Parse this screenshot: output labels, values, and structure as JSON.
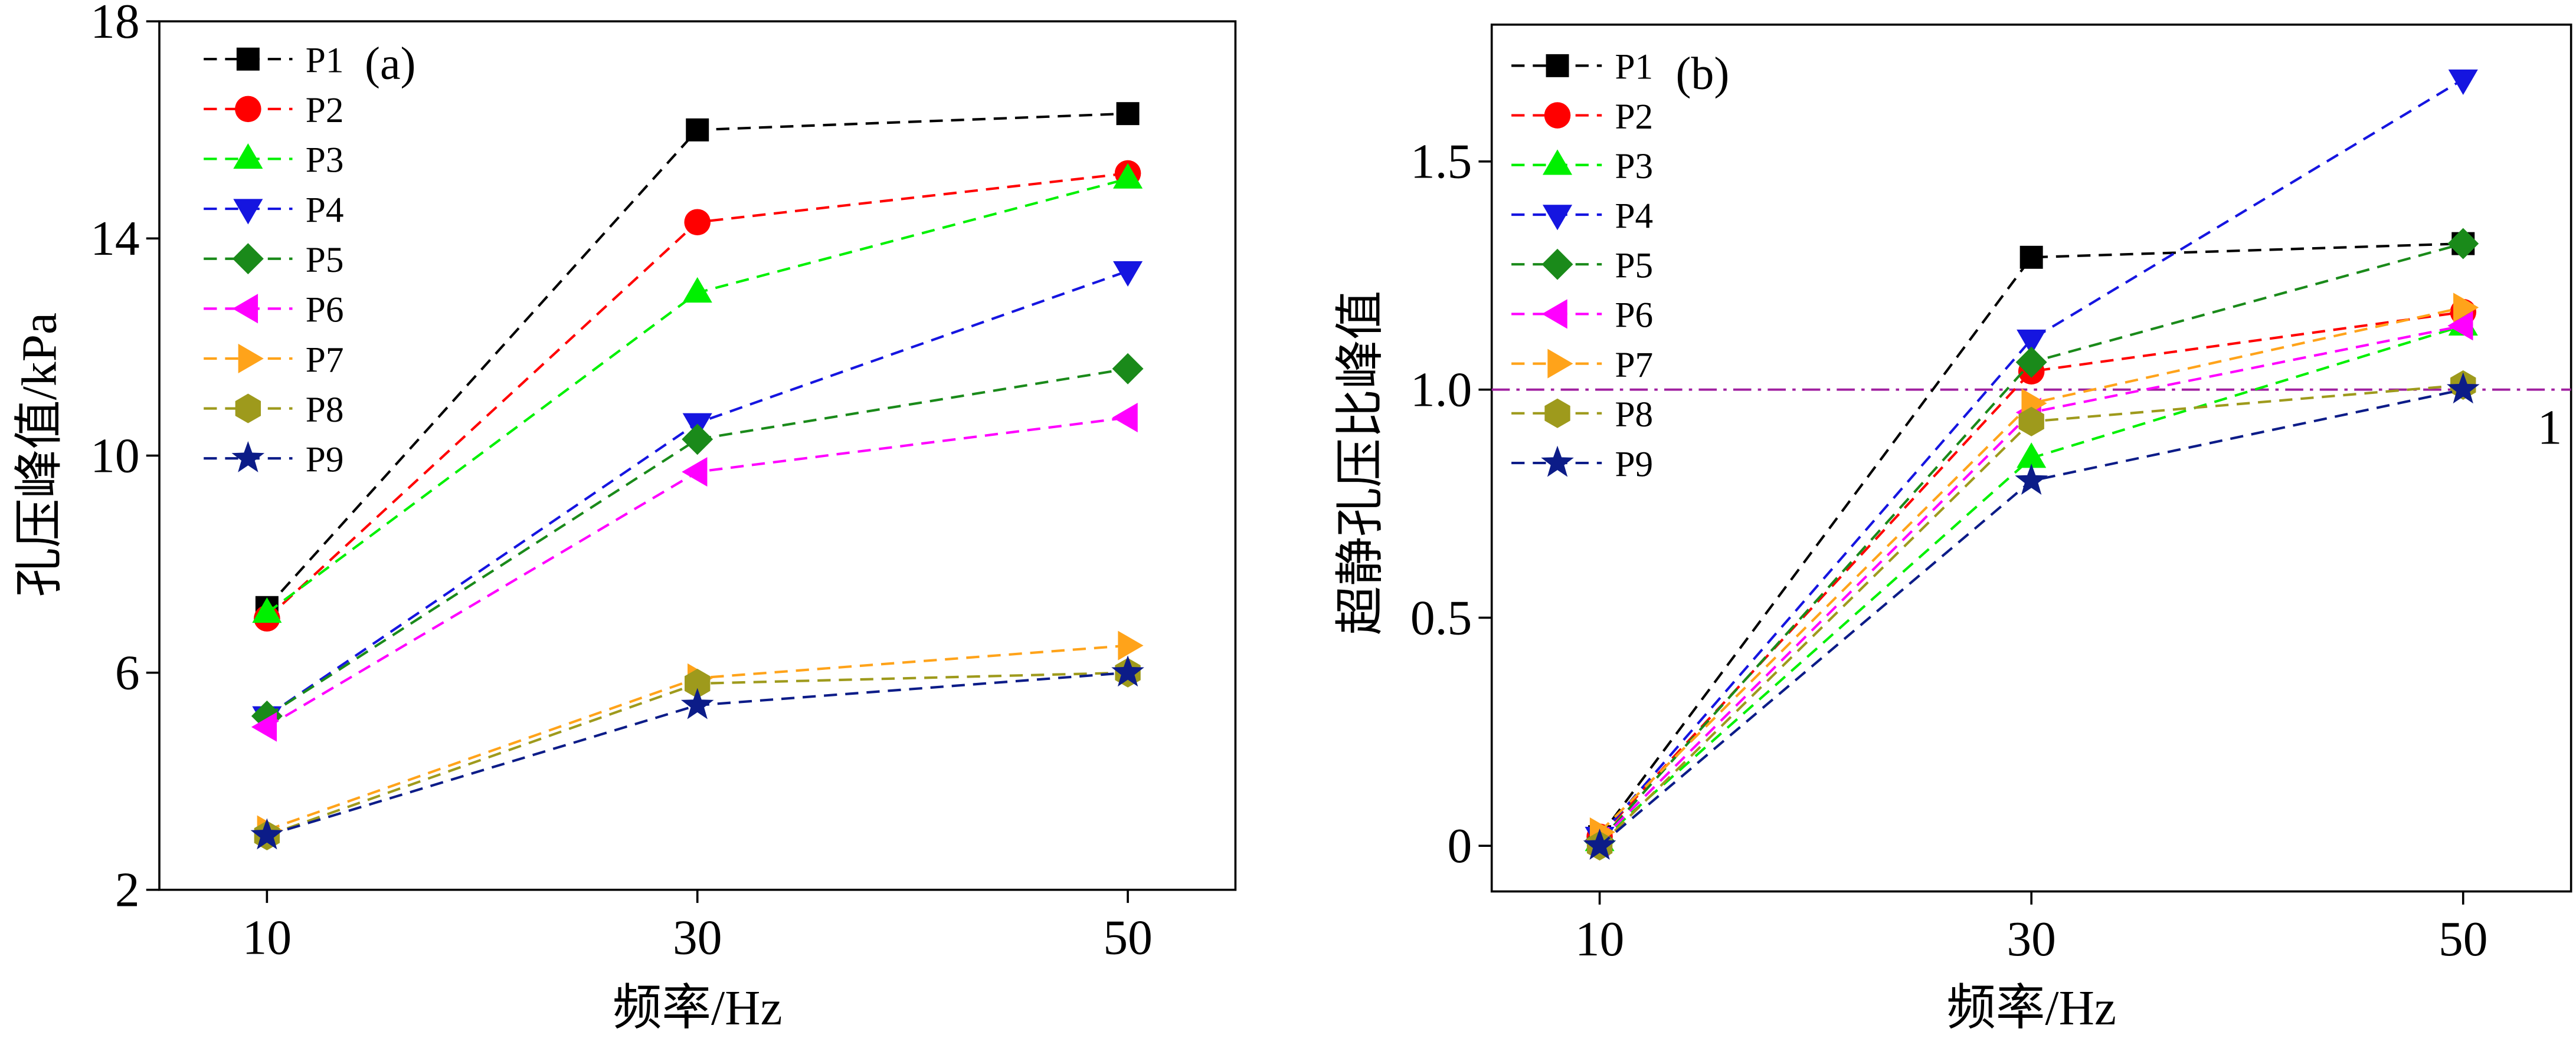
{
  "chart_data": [
    {
      "type": "line",
      "panel_label": "(a)",
      "xlabel": "频率/Hz",
      "ylabel": "孔压峰值/kPa",
      "x": [
        10,
        30,
        50
      ],
      "xlim": [
        5,
        55
      ],
      "ylim": [
        2,
        18
      ],
      "xticks": [
        10,
        30,
        50
      ],
      "xtick_labels": [
        "10",
        "30",
        "50"
      ],
      "yticks": [
        2,
        6,
        10,
        14,
        18
      ],
      "ytick_labels": [
        "2",
        "6",
        "10",
        "14",
        "18"
      ],
      "grid": false,
      "legend": "top-left",
      "series": [
        {
          "name": "P1",
          "values": [
            7.2,
            16.0,
            16.3
          ],
          "color": "#000000",
          "marker": "square"
        },
        {
          "name": "P2",
          "values": [
            7.0,
            14.3,
            15.2
          ],
          "color": "#ff0000",
          "marker": "circle"
        },
        {
          "name": "P3",
          "values": [
            7.1,
            13.0,
            15.1
          ],
          "color": "#00f000",
          "marker": "triangle-up"
        },
        {
          "name": "P4",
          "values": [
            5.2,
            10.6,
            13.4
          ],
          "color": "#1515e0",
          "marker": "triangle-down"
        },
        {
          "name": "P5",
          "values": [
            5.2,
            10.3,
            11.6
          ],
          "color": "#1a8a1a",
          "marker": "diamond"
        },
        {
          "name": "P6",
          "values": [
            5.0,
            9.7,
            10.7
          ],
          "color": "#ff00ff",
          "marker": "triangle-left"
        },
        {
          "name": "P7",
          "values": [
            3.1,
            5.9,
            6.5
          ],
          "color": "#ffa31a",
          "marker": "triangle-right"
        },
        {
          "name": "P8",
          "values": [
            3.0,
            5.8,
            6.0
          ],
          "color": "#9e9a1c",
          "marker": "hexagon"
        },
        {
          "name": "P9",
          "values": [
            3.0,
            5.4,
            6.0
          ],
          "color": "#0c1c88",
          "marker": "star"
        }
      ]
    },
    {
      "type": "line",
      "panel_label": "(b)",
      "xlabel": "频率/Hz",
      "ylabel": "超静孔压比峰值",
      "x": [
        10,
        30,
        50
      ],
      "xlim": [
        5,
        55
      ],
      "ylim": [
        -0.1,
        1.8
      ],
      "xticks": [
        10,
        30,
        50
      ],
      "xtick_labels": [
        "10",
        "30",
        "50"
      ],
      "yticks": [
        0,
        0.5,
        1.0,
        1.5
      ],
      "ytick_labels": [
        "0",
        "0.5",
        "1.0",
        "1.5"
      ],
      "grid": false,
      "legend": "top-left",
      "reference_line": {
        "y": 1.0,
        "label": "1",
        "color": "#a020a0"
      },
      "series": [
        {
          "name": "P1",
          "values": [
            0.02,
            1.29,
            1.32
          ],
          "color": "#000000",
          "marker": "square"
        },
        {
          "name": "P2",
          "values": [
            0.02,
            1.04,
            1.17
          ],
          "color": "#ff0000",
          "marker": "circle"
        },
        {
          "name": "P3",
          "values": [
            0.01,
            0.85,
            1.14
          ],
          "color": "#00f000",
          "marker": "triangle-up"
        },
        {
          "name": "P4",
          "values": [
            0.02,
            1.11,
            1.68
          ],
          "color": "#1515e0",
          "marker": "triangle-down"
        },
        {
          "name": "P5",
          "values": [
            0.01,
            1.06,
            1.32
          ],
          "color": "#1a8a1a",
          "marker": "diamond"
        },
        {
          "name": "P6",
          "values": [
            0.01,
            0.95,
            1.14
          ],
          "color": "#ff00ff",
          "marker": "triangle-left"
        },
        {
          "name": "P7",
          "values": [
            0.03,
            0.97,
            1.18
          ],
          "color": "#ffa31a",
          "marker": "triangle-right"
        },
        {
          "name": "P8",
          "values": [
            0.0,
            0.93,
            1.01
          ],
          "color": "#9e9a1c",
          "marker": "hexagon"
        },
        {
          "name": "P9",
          "values": [
            0.0,
            0.8,
            1.0
          ],
          "color": "#0c1c88",
          "marker": "star"
        }
      ]
    }
  ]
}
